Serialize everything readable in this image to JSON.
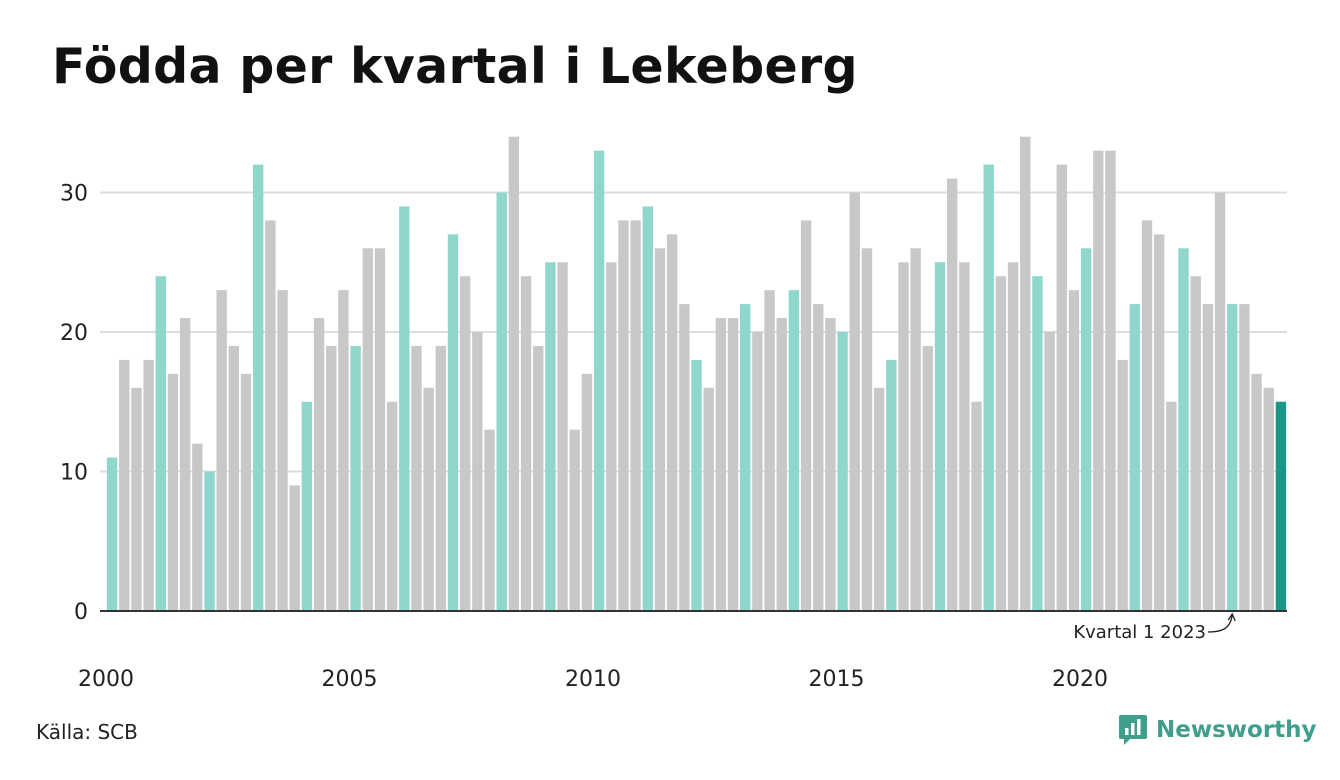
{
  "title": "Födda per kvartal i Lekeberg",
  "source": "Källa: SCB",
  "logo": {
    "text": "Newsworthy"
  },
  "colors": {
    "q1": "#8fd6cc",
    "other": "#c8c8c8",
    "highlight": "#1b9686",
    "grid": "#dddddd",
    "axis": "#333333"
  },
  "chart_data": {
    "type": "bar",
    "title": "Födda per kvartal i Lekeberg",
    "xlabel": "",
    "ylabel": "",
    "ylim": [
      0,
      34
    ],
    "yticks": [
      0,
      10,
      20,
      30
    ],
    "xticks": [
      "2000",
      "2005",
      "2010",
      "2015",
      "2020"
    ],
    "grid": true,
    "start_year": 2000,
    "values": [
      11,
      18,
      16,
      18,
      24,
      17,
      21,
      12,
      10,
      23,
      19,
      17,
      32,
      28,
      23,
      9,
      15,
      21,
      19,
      23,
      19,
      26,
      26,
      15,
      29,
      19,
      16,
      19,
      27,
      24,
      20,
      13,
      30,
      34,
      24,
      19,
      25,
      25,
      13,
      17,
      33,
      25,
      28,
      28,
      29,
      26,
      27,
      22,
      18,
      16,
      21,
      21,
      22,
      20,
      23,
      21,
      23,
      28,
      22,
      21,
      20,
      30,
      26,
      16,
      18,
      25,
      26,
      19,
      25,
      31,
      25,
      15,
      32,
      24,
      25,
      34,
      24,
      20,
      32,
      23,
      26,
      33,
      33,
      18,
      22,
      28,
      27,
      15,
      26,
      24,
      22,
      30,
      22,
      22,
      17,
      16,
      15
    ],
    "annotation": "Kvartal 1 2023"
  }
}
